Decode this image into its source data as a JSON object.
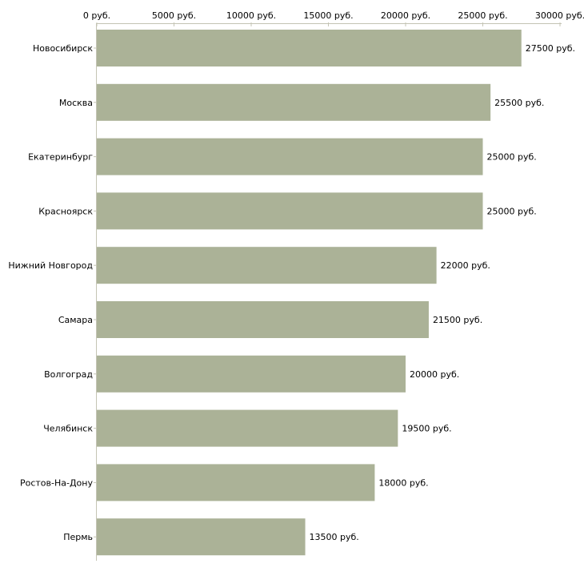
{
  "chart_data": {
    "type": "bar",
    "orientation": "horizontal",
    "title": "",
    "xlabel": "",
    "ylabel": "",
    "xlim": [
      0,
      30000
    ],
    "x_ticks": [
      0,
      5000,
      10000,
      15000,
      20000,
      25000,
      30000
    ],
    "x_tick_labels": [
      "0 руб.",
      "5000 руб.",
      "10000 руб.",
      "15000 руб.",
      "20000 руб.",
      "25000 руб.",
      "30000 руб."
    ],
    "axis_position": "top",
    "grid": false,
    "categories": [
      "Новосибирск",
      "Москва",
      "Екатеринбург",
      "Красноярск",
      "Нижний Новгород",
      "Самара",
      "Волгоград",
      "Челябинск",
      "Ростов-На-Дону",
      "Пермь"
    ],
    "values": [
      27500,
      25500,
      25000,
      25000,
      22000,
      21500,
      20000,
      19500,
      18000,
      13500
    ],
    "data_labels": [
      "27500 руб.",
      "25500 руб.",
      "25000 руб.",
      "25000 руб.",
      "22000 руб.",
      "21500 руб.",
      "20000 руб.",
      "19500 руб.",
      "18000 руб.",
      "13500 руб."
    ],
    "bar_color": "#abb297",
    "axis_color": "#c4c4b4"
  }
}
